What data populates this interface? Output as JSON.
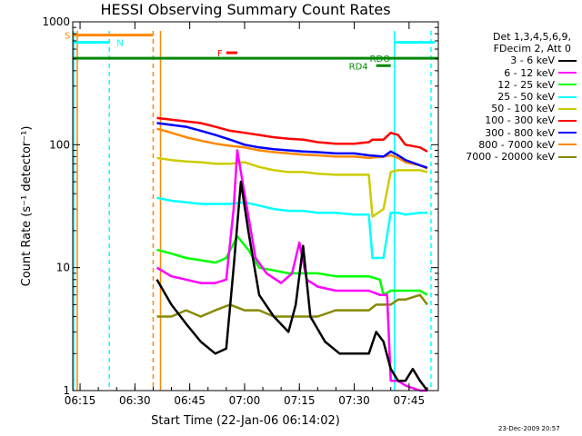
{
  "chart_data": {
    "type": "line",
    "title": "HESSI Observing Summary Count Rates",
    "xlabel": "Start Time (22-Jan-06 06:14:02)",
    "ylabel": "Count Rate (s⁻¹ detector⁻¹)",
    "yscale": "log",
    "ylim": [
      1,
      1000
    ],
    "xlim": [
      "06:13",
      "07:53"
    ],
    "x_ticks": [
      "06:15",
      "06:30",
      "06:45",
      "07:00",
      "07:15",
      "07:30",
      "07:45"
    ],
    "y_ticks": [
      "1",
      "10",
      "100",
      "1000"
    ],
    "legend_header": [
      "Det 1,3,4,5,6,9,",
      "FDecim 2, Att 0"
    ],
    "legend_position": "right",
    "series": [
      {
        "name": "3 - 6 keV",
        "color": "#000000",
        "x": [
          "06:36",
          "06:40",
          "06:44",
          "06:48",
          "06:52",
          "06:55",
          "06:57",
          "06:59",
          "07:01",
          "07:04",
          "07:08",
          "07:12",
          "07:14",
          "07:16",
          "07:18",
          "07:22",
          "07:26",
          "07:30",
          "07:34",
          "07:36",
          "07:38",
          "07:40",
          "07:42",
          "07:44",
          "07:46",
          "07:48",
          "07:50"
        ],
        "y": [
          8,
          5,
          3.5,
          2.5,
          2,
          2.2,
          10,
          50,
          20,
          6,
          4,
          3,
          5,
          15,
          4,
          2.5,
          2,
          2,
          2,
          3,
          2.5,
          1.5,
          1.2,
          1.2,
          1.5,
          1.2,
          1
        ]
      },
      {
        "name": "6 - 12 keV",
        "color": "#ff00ff",
        "x": [
          "06:36",
          "06:40",
          "06:44",
          "06:48",
          "06:52",
          "06:55",
          "06:57",
          "06:58",
          "07:00",
          "07:03",
          "07:06",
          "07:10",
          "07:13",
          "07:15",
          "07:17",
          "07:20",
          "07:25",
          "07:30",
          "07:34",
          "07:37",
          "07:39",
          "07:40",
          "07:42",
          "07:44",
          "07:48",
          "07:50"
        ],
        "y": [
          10,
          8.5,
          8,
          7.5,
          7.5,
          8,
          30,
          90,
          40,
          12,
          9,
          7.5,
          9,
          16,
          8,
          7,
          6.5,
          6.5,
          6.5,
          6,
          6,
          1.2,
          1.2,
          1.1,
          1,
          1
        ]
      },
      {
        "name": "12 - 25 keV",
        "color": "#00ff00",
        "x": [
          "06:36",
          "06:40",
          "06:44",
          "06:48",
          "06:52",
          "06:55",
          "06:58",
          "07:01",
          "07:04",
          "07:08",
          "07:12",
          "07:16",
          "07:20",
          "07:25",
          "07:30",
          "07:34",
          "07:37",
          "07:38",
          "07:40",
          "07:42",
          "07:44",
          "07:48",
          "07:50"
        ],
        "y": [
          14,
          13,
          12,
          11.5,
          11,
          12,
          18,
          14,
          10,
          9.5,
          9,
          9,
          9,
          8.5,
          8.5,
          8.5,
          8,
          6,
          6.5,
          6.5,
          6.5,
          6.5,
          6
        ]
      },
      {
        "name": "25 - 50 keV",
        "color": "#00ffff",
        "x": [
          "06:36",
          "06:40",
          "06:44",
          "06:48",
          "06:52",
          "06:56",
          "07:00",
          "07:04",
          "07:08",
          "07:12",
          "07:16",
          "07:20",
          "07:25",
          "07:30",
          "07:34",
          "07:35",
          "07:38",
          "07:40",
          "07:42",
          "07:44",
          "07:48",
          "07:50"
        ],
        "y": [
          37,
          35,
          34,
          33,
          33,
          33,
          34,
          32,
          30,
          29,
          29,
          28,
          28,
          27,
          27,
          12,
          12,
          28,
          28,
          27,
          28,
          28
        ]
      },
      {
        "name": "50 - 100 keV",
        "color": "#cccc00",
        "x": [
          "06:36",
          "06:40",
          "06:44",
          "06:48",
          "06:52",
          "06:56",
          "07:00",
          "07:04",
          "07:08",
          "07:12",
          "07:16",
          "07:20",
          "07:25",
          "07:30",
          "07:34",
          "07:35",
          "07:38",
          "07:40",
          "07:42",
          "07:44",
          "07:48",
          "07:50"
        ],
        "y": [
          78,
          75,
          73,
          72,
          70,
          70,
          72,
          66,
          62,
          60,
          60,
          58,
          57,
          57,
          57,
          26,
          30,
          60,
          62,
          62,
          62,
          60
        ]
      },
      {
        "name": "100 - 300 keV",
        "color": "#ff0000",
        "x": [
          "06:36",
          "06:40",
          "06:44",
          "06:48",
          "06:52",
          "06:56",
          "07:00",
          "07:04",
          "07:08",
          "07:12",
          "07:16",
          "07:20",
          "07:25",
          "07:30",
          "07:34",
          "07:35",
          "07:38",
          "07:40",
          "07:42",
          "07:44",
          "07:48",
          "07:50"
        ],
        "y": [
          165,
          160,
          155,
          150,
          140,
          130,
          125,
          120,
          115,
          112,
          110,
          105,
          102,
          102,
          105,
          110,
          110,
          125,
          120,
          100,
          95,
          88
        ]
      },
      {
        "name": "300 - 800 keV",
        "color": "#0000ff",
        "x": [
          "06:36",
          "06:40",
          "06:44",
          "06:48",
          "06:52",
          "06:56",
          "07:00",
          "07:04",
          "07:08",
          "07:12",
          "07:16",
          "07:20",
          "07:25",
          "07:30",
          "07:34",
          "07:38",
          "07:40",
          "07:42",
          "07:44",
          "07:48",
          "07:50"
        ],
        "y": [
          150,
          145,
          140,
          130,
          120,
          110,
          100,
          95,
          92,
          90,
          88,
          87,
          85,
          85,
          82,
          80,
          88,
          82,
          75,
          68,
          65
        ]
      },
      {
        "name": "800 - 7000 keV",
        "color": "#ff8800",
        "x": [
          "06:36",
          "06:40",
          "06:44",
          "06:48",
          "06:52",
          "06:56",
          "07:00",
          "07:04",
          "07:08",
          "07:12",
          "07:16",
          "07:20",
          "07:25",
          "07:30",
          "07:34",
          "07:38",
          "07:40",
          "07:42",
          "07:44",
          "07:48",
          "07:50"
        ],
        "y": [
          135,
          125,
          115,
          108,
          102,
          98,
          95,
          90,
          87,
          85,
          83,
          82,
          80,
          80,
          78,
          80,
          82,
          78,
          72,
          68,
          64
        ]
      },
      {
        "name": "7000 - 20000 keV",
        "color": "#888800",
        "x": [
          "06:36",
          "06:40",
          "06:44",
          "06:48",
          "06:52",
          "06:56",
          "07:00",
          "07:04",
          "07:08",
          "07:12",
          "07:16",
          "07:20",
          "07:25",
          "07:30",
          "07:34",
          "07:36",
          "07:38",
          "07:40",
          "07:42",
          "07:44",
          "07:48",
          "07:50"
        ],
        "y": [
          4,
          4,
          4.5,
          4,
          4.5,
          5,
          4.5,
          4.5,
          4,
          4,
          4,
          4,
          4.5,
          4.5,
          4.5,
          5,
          5,
          5,
          5.5,
          5.5,
          6,
          5
        ]
      }
    ],
    "flags": [
      {
        "label": "S",
        "color": "#ff8800",
        "x": [
          "06:13",
          "06:35"
        ],
        "y": 780
      },
      {
        "label": "N",
        "color": "#00ffff",
        "x": [
          "06:13",
          "06:23"
        ],
        "y": 680
      },
      {
        "label": "N",
        "color": "#00ffff",
        "x": [
          "07:41",
          "07:52"
        ],
        "y": 680
      },
      {
        "label": "F",
        "color": "#ff0000",
        "x": [
          "06:55",
          "06:58"
        ],
        "y": 560
      },
      {
        "label": "RDO",
        "color": "#008800",
        "x": [
          "06:13",
          "07:53"
        ],
        "y": 505
      },
      {
        "label": "RD4",
        "color": "#008800",
        "x": [
          "07:36",
          "07:40"
        ],
        "y": 440
      }
    ],
    "vertical_lines": [
      {
        "x": "06:13",
        "color": "#ff8800",
        "style": "solid"
      },
      {
        "x": "06:13",
        "color": "#00ffff",
        "style": "solid"
      },
      {
        "x": "06:23",
        "color": "#00ffff",
        "style": "dashed"
      },
      {
        "x": "06:35",
        "color": "#ff8800",
        "style": "dashed"
      },
      {
        "x": "06:37",
        "color": "#ff8800",
        "style": "solid"
      },
      {
        "x": "07:41",
        "color": "#00ffff",
        "style": "solid"
      },
      {
        "x": "07:51",
        "color": "#00ffff",
        "style": "dashed"
      }
    ]
  },
  "footer": {
    "timestamp": "23-Dec-2009 20:57"
  }
}
